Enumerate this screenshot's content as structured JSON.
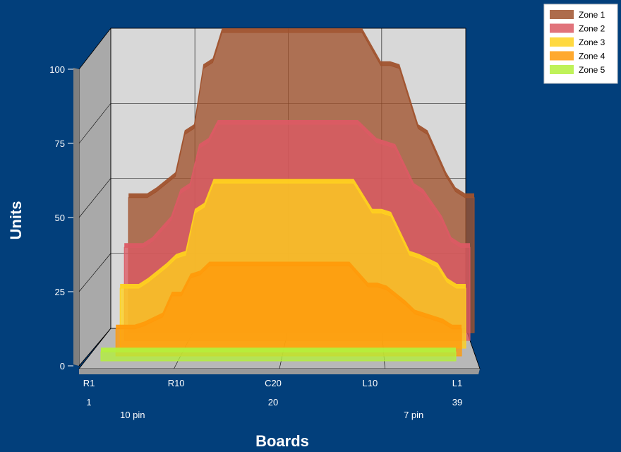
{
  "chart_data": {
    "type": "area",
    "chart_style": "3d-stacked-depth",
    "xlabel": "Boards",
    "ylabel": "Units",
    "ylim": [
      0,
      100
    ],
    "yticks": [
      0,
      25,
      50,
      75,
      100
    ],
    "x_tick_labels": [
      {
        "x": 1,
        "label": "R1"
      },
      {
        "x": 10,
        "label": "R10"
      },
      {
        "x": 20,
        "label": "C20"
      },
      {
        "x": 30,
        "label": "L10"
      },
      {
        "x": 39,
        "label": "L1"
      }
    ],
    "x_secondary_labels": [
      {
        "x": 1,
        "label": "1"
      },
      {
        "x": 20,
        "label": "20"
      },
      {
        "x": 39,
        "label": "39"
      }
    ],
    "x_annotations": [
      {
        "x": 5.5,
        "label": "10 pin"
      },
      {
        "x": 34.5,
        "label": "7 pin"
      }
    ],
    "legend_position": "top-right",
    "series": [
      {
        "name": "Zone 1",
        "color": "#a0522d",
        "points": [
          [
            2,
            45
          ],
          [
            4,
            45
          ],
          [
            5,
            47
          ],
          [
            7,
            52
          ],
          [
            8,
            66
          ],
          [
            9,
            68
          ],
          [
            10,
            88
          ],
          [
            11,
            90
          ],
          [
            12,
            100
          ],
          [
            27,
            100
          ],
          [
            29,
            89
          ],
          [
            30,
            89
          ],
          [
            31,
            88
          ],
          [
            33,
            68
          ],
          [
            34,
            66
          ],
          [
            36,
            52
          ],
          [
            37,
            47
          ],
          [
            38,
            45
          ],
          [
            39,
            45
          ]
        ]
      },
      {
        "name": "Zone 2",
        "color": "#dc5a64",
        "points": [
          [
            2,
            31
          ],
          [
            4,
            31
          ],
          [
            5,
            33
          ],
          [
            7,
            40
          ],
          [
            8,
            49
          ],
          [
            9,
            51
          ],
          [
            10,
            64
          ],
          [
            11,
            66
          ],
          [
            12,
            72
          ],
          [
            27,
            72
          ],
          [
            29,
            66
          ],
          [
            30,
            65
          ],
          [
            31,
            64
          ],
          [
            33,
            51
          ],
          [
            34,
            49
          ],
          [
            36,
            40
          ],
          [
            37,
            33
          ],
          [
            38,
            31
          ],
          [
            39,
            31
          ]
        ]
      },
      {
        "name": "Zone 3",
        "color": "#ffd21e",
        "points": [
          [
            2,
            20
          ],
          [
            4,
            20
          ],
          [
            5,
            22
          ],
          [
            7,
            27
          ],
          [
            8,
            30
          ],
          [
            9,
            31
          ],
          [
            10,
            45
          ],
          [
            11,
            47
          ],
          [
            12,
            55
          ],
          [
            27,
            55
          ],
          [
            29,
            45
          ],
          [
            30,
            45
          ],
          [
            31,
            44
          ],
          [
            33,
            31
          ],
          [
            34,
            30
          ],
          [
            36,
            27
          ],
          [
            37,
            22
          ],
          [
            38,
            20
          ],
          [
            39,
            20
          ]
        ]
      },
      {
        "name": "Zone 4",
        "color": "#ff9a0a",
        "points": [
          [
            2,
            9
          ],
          [
            4,
            9
          ],
          [
            5,
            10
          ],
          [
            7,
            13
          ],
          [
            8,
            20
          ],
          [
            9,
            20
          ],
          [
            10,
            26
          ],
          [
            11,
            27
          ],
          [
            12,
            30
          ],
          [
            27,
            30
          ],
          [
            29,
            23
          ],
          [
            30,
            23
          ],
          [
            31,
            22
          ],
          [
            33,
            17
          ],
          [
            34,
            14
          ],
          [
            36,
            12
          ],
          [
            37,
            11
          ],
          [
            38,
            9
          ],
          [
            39,
            9
          ]
        ]
      },
      {
        "name": "Zone 5",
        "color": "#b4f03c",
        "points": [
          [
            1,
            3
          ],
          [
            39,
            3
          ]
        ]
      }
    ]
  }
}
